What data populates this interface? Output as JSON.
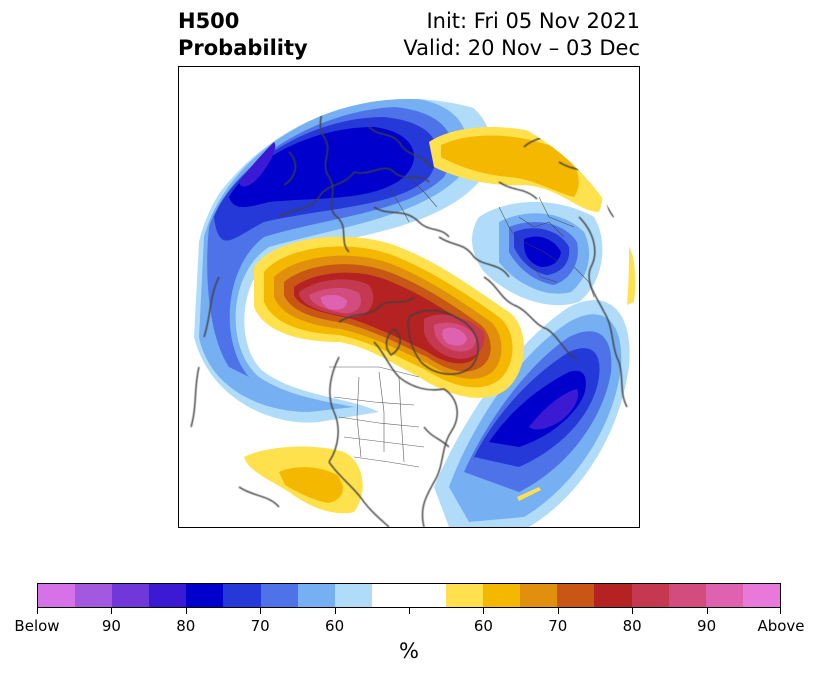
{
  "title": {
    "left_line1": "H500",
    "left_line2": "Probability",
    "init": "Init: Fri 05 Nov 2021",
    "valid": "Valid: 20 Nov – 03 Dec"
  },
  "colorbar": {
    "colors": [
      "#d672e8",
      "#a259e0",
      "#7038d8",
      "#3c1ad4",
      "#0000cc",
      "#2538d8",
      "#4e73e8",
      "#76aff2",
      "#b0dcfa",
      "#ffffff",
      "#ffffff",
      "#ffe14d",
      "#f4b800",
      "#e0900c",
      "#c85614",
      "#b42222",
      "#c43950",
      "#d24d7e",
      "#de62b0",
      "#e879da"
    ],
    "tick_labels": [
      "Below",
      "90",
      "80",
      "70",
      "60",
      "",
      "60",
      "70",
      "80",
      "90",
      "Above"
    ],
    "units": "%"
  },
  "map": {
    "above_colors": {
      "p55": "#ffe14d",
      "p60": "#f4b800",
      "p65": "#e0900c",
      "p70": "#c85614",
      "p75": "#b42222",
      "p80": "#c43950",
      "p85": "#d24d7e",
      "p90": "#de62b0"
    },
    "below_colors": {
      "p55": "#b0dcfa",
      "p60": "#76aff2",
      "p65": "#4e73e8",
      "p70": "#2538d8",
      "p75": "#0000cc",
      "p80": "#3c1ad4"
    },
    "coastline_color": "#404040"
  }
}
